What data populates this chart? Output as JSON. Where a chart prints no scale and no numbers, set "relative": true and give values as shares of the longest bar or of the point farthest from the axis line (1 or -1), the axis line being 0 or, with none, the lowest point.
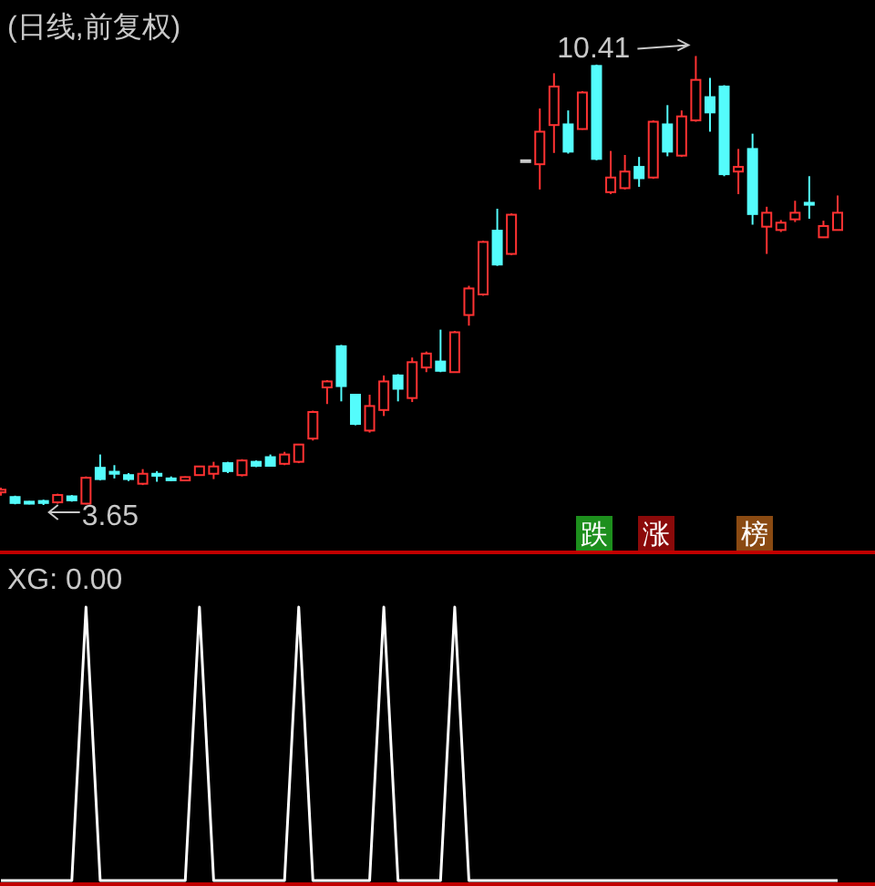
{
  "chart_data": [
    {
      "type": "candlestick",
      "title": "(日线,前复权)",
      "categories": [
        null,
        null,
        null,
        null,
        null,
        null,
        null,
        null,
        null,
        null,
        null,
        null,
        null,
        null,
        null,
        null,
        null,
        null,
        null,
        null,
        null,
        null,
        null,
        null,
        null,
        null,
        null,
        null,
        null,
        null,
        null,
        null,
        null,
        null,
        null,
        null,
        null,
        null,
        null,
        null,
        null,
        null,
        null,
        null,
        null,
        null,
        null,
        null,
        null,
        null,
        null,
        null,
        null,
        null,
        null,
        null,
        null,
        null,
        null,
        null
      ],
      "ohlc": [
        [
          3.84,
          3.91,
          3.79,
          3.88
        ],
        [
          3.77,
          3.79,
          3.66,
          3.68
        ],
        [
          3.7,
          3.71,
          3.66,
          3.67
        ],
        [
          3.71,
          3.73,
          3.65,
          3.68
        ],
        [
          3.69,
          3.82,
          3.67,
          3.8
        ],
        [
          3.78,
          3.8,
          3.7,
          3.72
        ],
        [
          3.67,
          4.08,
          3.66,
          4.06
        ],
        [
          4.21,
          4.41,
          4.02,
          4.04
        ],
        [
          4.15,
          4.25,
          4.05,
          4.12
        ],
        [
          4.1,
          4.13,
          4.01,
          4.04
        ],
        [
          3.97,
          4.19,
          3.95,
          4.12
        ],
        [
          4.12,
          4.16,
          4.0,
          4.09
        ],
        [
          4.05,
          4.08,
          4.01,
          4.03
        ],
        [
          4.02,
          4.08,
          4.01,
          4.07
        ],
        [
          4.1,
          4.24,
          4.09,
          4.23
        ],
        [
          4.12,
          4.3,
          4.04,
          4.23
        ],
        [
          4.28,
          4.3,
          4.13,
          4.16
        ],
        [
          4.1,
          4.34,
          4.08,
          4.32
        ],
        [
          4.3,
          4.32,
          4.22,
          4.24
        ],
        [
          4.37,
          4.41,
          4.23,
          4.24
        ],
        [
          4.27,
          4.45,
          4.25,
          4.41
        ],
        [
          4.3,
          4.57,
          4.28,
          4.56
        ],
        [
          4.65,
          5.07,
          4.62,
          5.05
        ],
        [
          5.42,
          5.53,
          5.17,
          5.51
        ],
        [
          6.04,
          6.06,
          5.21,
          5.44
        ],
        [
          5.31,
          5.32,
          4.85,
          4.87
        ],
        [
          4.77,
          5.31,
          4.74,
          5.14
        ],
        [
          5.08,
          5.6,
          4.99,
          5.51
        ],
        [
          5.6,
          5.62,
          5.21,
          5.4
        ],
        [
          5.26,
          5.87,
          5.2,
          5.8
        ],
        [
          5.72,
          5.96,
          5.65,
          5.93
        ],
        [
          5.81,
          6.29,
          5.65,
          5.67
        ],
        [
          5.65,
          6.27,
          5.64,
          6.25
        ],
        [
          6.51,
          6.95,
          6.35,
          6.91
        ],
        [
          6.82,
          7.63,
          6.8,
          7.61
        ],
        [
          7.78,
          8.11,
          7.25,
          7.27
        ],
        [
          7.43,
          8.04,
          7.41,
          8.02
        ],
        [
          8.82,
          8.84,
          8.82,
          8.84
        ],
        [
          8.78,
          9.62,
          8.4,
          9.27
        ],
        [
          9.37,
          10.15,
          8.95,
          9.95
        ],
        [
          9.38,
          9.59,
          8.94,
          8.97
        ],
        [
          9.31,
          9.88,
          9.3,
          9.86
        ],
        [
          10.26,
          10.28,
          8.84,
          8.86
        ],
        [
          8.36,
          8.98,
          8.33,
          8.58
        ],
        [
          8.42,
          8.92,
          8.4,
          8.67
        ],
        [
          8.74,
          8.89,
          8.44,
          8.57
        ],
        [
          8.58,
          9.44,
          8.56,
          9.42
        ],
        [
          9.38,
          9.67,
          8.9,
          8.97
        ],
        [
          8.91,
          9.59,
          8.89,
          9.5
        ],
        [
          9.44,
          10.41,
          9.42,
          10.05
        ],
        [
          9.79,
          10.08,
          9.27,
          9.56
        ],
        [
          9.95,
          9.97,
          8.6,
          8.63
        ],
        [
          8.67,
          9.01,
          8.33,
          8.74
        ],
        [
          9.01,
          9.24,
          7.87,
          8.03
        ],
        [
          7.84,
          8.14,
          7.43,
          8.05
        ],
        [
          7.79,
          7.94,
          7.76,
          7.9
        ],
        [
          7.95,
          8.23,
          7.91,
          8.05
        ],
        [
          8.2,
          8.6,
          7.96,
          8.17
        ],
        [
          7.68,
          7.93,
          7.67,
          7.85
        ],
        [
          7.79,
          8.31,
          7.78,
          8.05
        ]
      ],
      "colors": [
        "#ff3232",
        "#54fcfc",
        "#54fcfc",
        "#54fcfc",
        "#ff3232",
        "#54fcfc",
        "#ff3232",
        "#54fcfc",
        "#54fcfc",
        "#54fcfc",
        "#ff3232",
        "#54fcfc",
        "#54fcfc",
        "#ff3232",
        "#ff3232",
        "#ff3232",
        "#54fcfc",
        "#ff3232",
        "#54fcfc",
        "#54fcfc",
        "#ff3232",
        "#ff3232",
        "#ff3232",
        "#ff3232",
        "#54fcfc",
        "#54fcfc",
        "#ff3232",
        "#ff3232",
        "#54fcfc",
        "#ff3232",
        "#ff3232",
        "#54fcfc",
        "#ff3232",
        "#ff3232",
        "#ff3232",
        "#54fcfc",
        "#ff3232",
        "#c8c8c8",
        "#ff3232",
        "#ff3232",
        "#54fcfc",
        "#ff3232",
        "#54fcfc",
        "#ff3232",
        "#ff3232",
        "#54fcfc",
        "#ff3232",
        "#54fcfc",
        "#ff3232",
        "#ff3232",
        "#54fcfc",
        "#54fcfc",
        "#ff3232",
        "#54fcfc",
        "#ff3232",
        "#ff3232",
        "#ff3232",
        "#54fcfc",
        "#ff3232",
        "#ff3232"
      ],
      "annotations": [
        "10.41",
        "3.65",
        "跌",
        "涨",
        "榜"
      ]
    },
    {
      "type": "line",
      "title": "XG: 0.00",
      "relative": true,
      "categories": [
        null,
        null,
        null,
        null,
        null,
        null,
        null,
        null,
        null,
        null,
        null,
        null,
        null,
        null,
        null,
        null,
        null,
        null,
        null,
        null,
        null,
        null,
        null,
        null,
        null,
        null,
        null,
        null,
        null,
        null,
        null,
        null,
        null,
        null,
        null,
        null,
        null,
        null,
        null,
        null,
        null,
        null,
        null,
        null,
        null,
        null,
        null,
        null,
        null,
        null,
        null,
        null,
        null,
        null,
        null,
        null,
        null,
        null,
        null,
        null
      ],
      "series": [
        {
          "color": "#ffffff",
          "values": [
            0,
            0,
            0,
            0,
            0,
            0,
            1,
            0,
            0,
            0,
            0,
            0,
            0,
            0,
            1,
            0,
            0,
            0,
            0,
            0,
            0,
            1,
            0,
            0,
            0,
            0,
            0,
            1,
            0,
            0,
            0,
            0,
            1,
            0,
            0,
            0,
            0,
            0,
            0,
            0,
            0,
            0,
            0,
            0,
            0,
            0,
            0,
            0,
            0,
            0,
            0,
            0,
            0,
            0,
            0,
            0,
            0,
            0,
            0,
            0
          ]
        }
      ]
    }
  ]
}
